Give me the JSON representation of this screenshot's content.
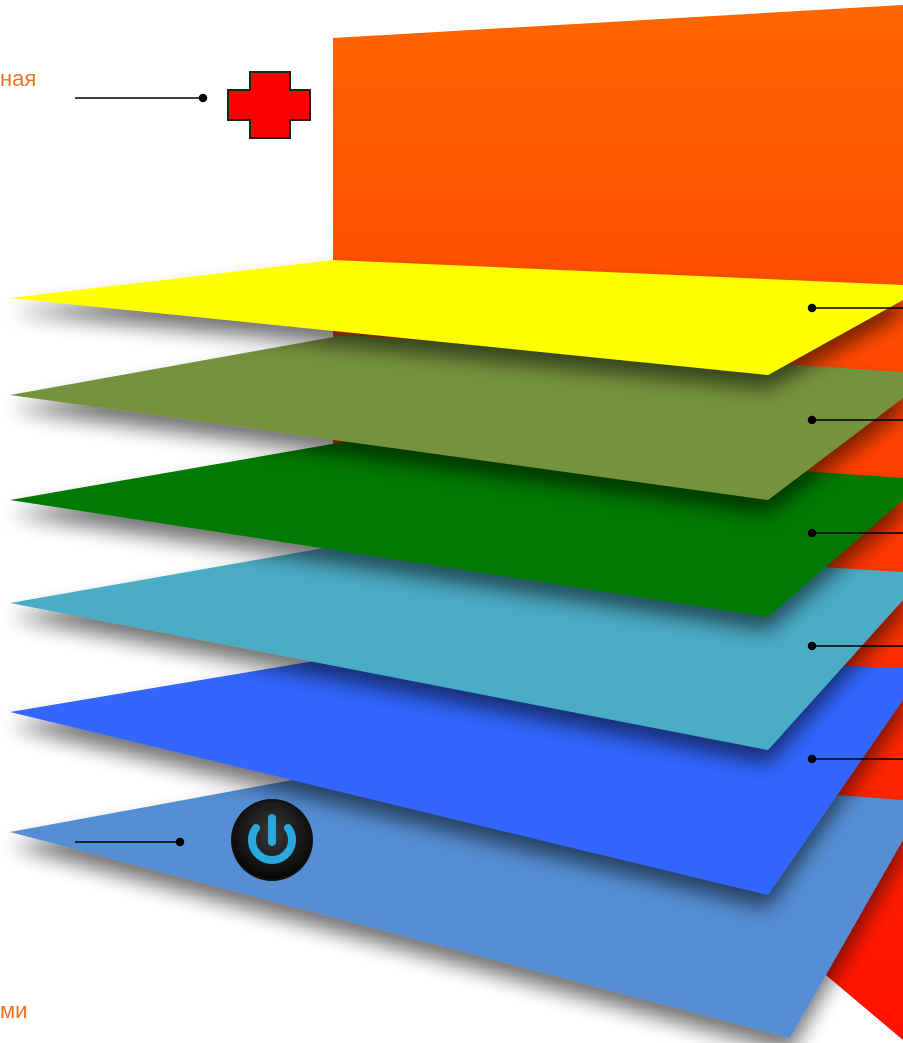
{
  "labels": {
    "top": "ная",
    "bottom": "ми"
  }
}
